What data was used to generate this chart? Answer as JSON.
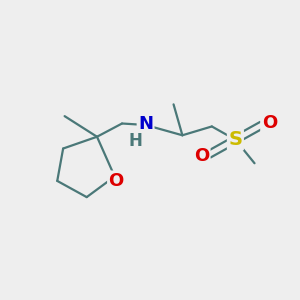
{
  "background_color": "#eeeeee",
  "bond_color": "#4a7878",
  "atom_colors": {
    "O": "#dd0000",
    "S": "#ccbb00",
    "N": "#0000cc",
    "H": "#4a7878",
    "C": "#4a7878"
  },
  "fig_size": [
    3.0,
    3.0
  ],
  "dpi": 100,
  "bond_lw": 1.6
}
